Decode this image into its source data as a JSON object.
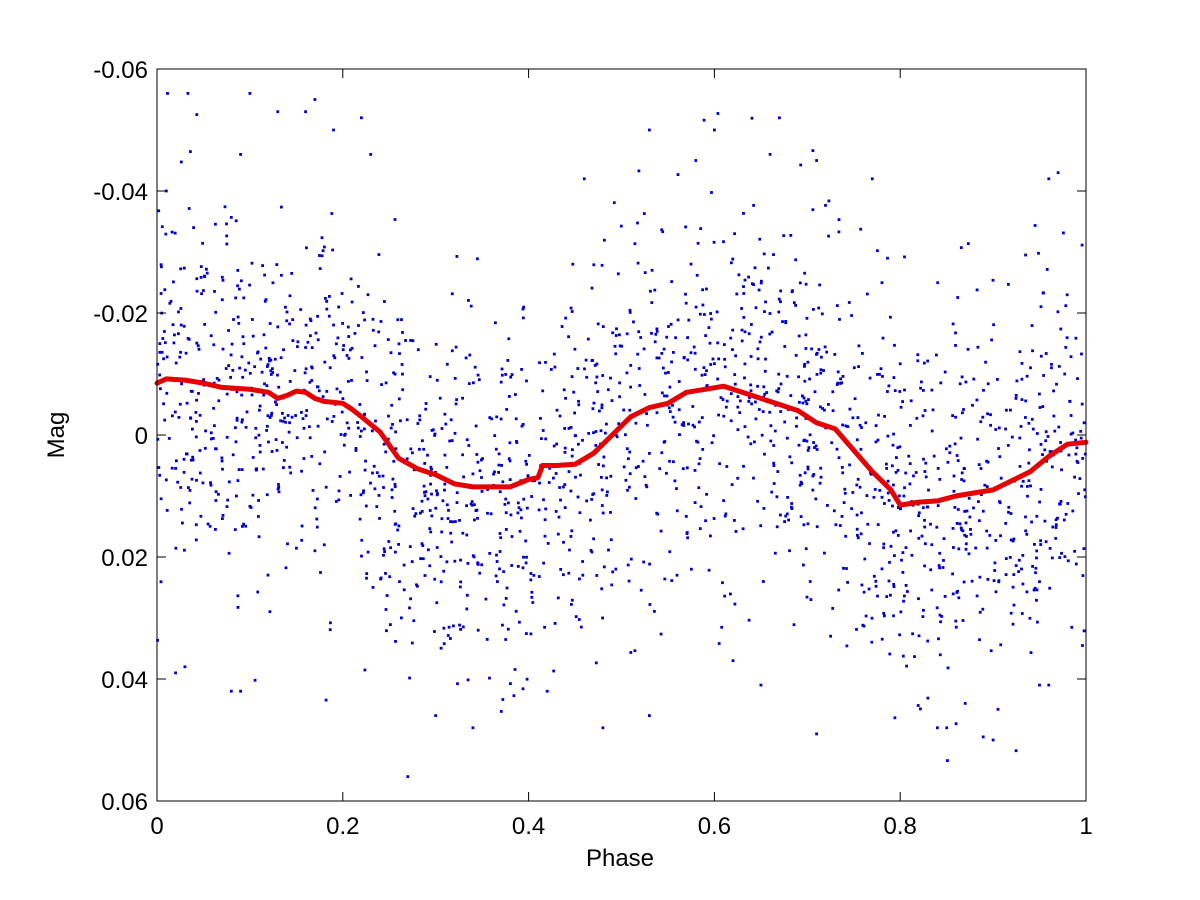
{
  "chart_data": {
    "type": "scatter",
    "title": "",
    "xlabel": "Phase",
    "ylabel": "Mag",
    "xlim": [
      0,
      1
    ],
    "ylim": [
      0.06,
      -0.06
    ],
    "y_inverted": true,
    "grid": false,
    "legend": "none",
    "xticks": [
      0,
      0.2,
      0.4,
      0.6,
      0.8,
      1
    ],
    "xtick_labels": [
      "0",
      "0.2",
      "0.4",
      "0.6",
      "0.8",
      "1"
    ],
    "yticks": [
      -0.06,
      -0.04,
      -0.02,
      0,
      0.02,
      0.04,
      0.06
    ],
    "ytick_labels": [
      "-0.06",
      "-0.04",
      "-0.02",
      "0",
      "0.02",
      "0.04",
      "0.06"
    ],
    "colors": {
      "points": "#0000cc",
      "fit": "#e60000"
    },
    "series": [
      {
        "type": "scatter",
        "values_note": "phase-folded photometry, about 2000 individual measurements scattered roughly ±0.04 mag around the fitted curve",
        "sample_points": [
          [
            0.01,
            -0.04
          ],
          [
            0.02,
            0.039
          ],
          [
            0.03,
            0.038
          ],
          [
            0.08,
            0.042
          ],
          [
            0.09,
            0.042
          ],
          [
            0.09,
            -0.046
          ],
          [
            0.1,
            -0.056
          ],
          [
            0.13,
            -0.053
          ],
          [
            0.16,
            -0.053
          ],
          [
            0.17,
            -0.055
          ],
          [
            0.19,
            -0.05
          ],
          [
            0.22,
            -0.052
          ],
          [
            0.23,
            -0.046
          ],
          [
            0.27,
            0.056
          ],
          [
            0.3,
            0.046
          ],
          [
            0.34,
            0.048
          ],
          [
            0.42,
            0.042
          ],
          [
            0.46,
            -0.042
          ],
          [
            0.48,
            0.048
          ],
          [
            0.53,
            0.046
          ],
          [
            0.53,
            -0.05
          ],
          [
            0.58,
            -0.045
          ],
          [
            0.6,
            -0.05
          ],
          [
            0.62,
            0.037
          ],
          [
            0.65,
            0.041
          ],
          [
            0.66,
            -0.046
          ],
          [
            0.67,
            -0.052
          ],
          [
            0.71,
            0.049
          ],
          [
            0.71,
            -0.045
          ],
          [
            0.77,
            -0.042
          ],
          [
            0.84,
            0.048
          ],
          [
            0.85,
            0.048
          ],
          [
            0.87,
            0.044
          ],
          [
            0.9,
            0.05
          ],
          [
            0.96,
            -0.042
          ],
          [
            0.97,
            -0.043
          ],
          [
            0.95,
            0.041
          ],
          [
            0.96,
            0.041
          ]
        ]
      },
      {
        "type": "line",
        "x": [
          0.0,
          0.01,
          0.03,
          0.05,
          0.07,
          0.1,
          0.12,
          0.13,
          0.14,
          0.15,
          0.16,
          0.17,
          0.18,
          0.2,
          0.21,
          0.22,
          0.24,
          0.26,
          0.28,
          0.3,
          0.32,
          0.34,
          0.36,
          0.38,
          0.4,
          0.41,
          0.415,
          0.43,
          0.45,
          0.47,
          0.49,
          0.51,
          0.53,
          0.55,
          0.57,
          0.59,
          0.61,
          0.63,
          0.65,
          0.67,
          0.69,
          0.71,
          0.73,
          0.75,
          0.77,
          0.79,
          0.8,
          0.82,
          0.84,
          0.86,
          0.88,
          0.9,
          0.92,
          0.94,
          0.96,
          0.98,
          1.0
        ],
        "y": [
          -0.0085,
          -0.0092,
          -0.009,
          -0.0085,
          -0.0078,
          -0.0075,
          -0.007,
          -0.006,
          -0.0065,
          -0.0072,
          -0.007,
          -0.006,
          -0.0055,
          -0.0052,
          -0.0042,
          -0.003,
          -0.0005,
          0.0038,
          0.0055,
          0.0065,
          0.008,
          0.0085,
          0.0085,
          0.0085,
          0.0073,
          0.007,
          0.005,
          0.005,
          0.0048,
          0.003,
          0.0,
          -0.003,
          -0.0045,
          -0.0052,
          -0.007,
          -0.0075,
          -0.008,
          -0.007,
          -0.006,
          -0.005,
          -0.004,
          -0.002,
          -0.001,
          0.0025,
          0.006,
          0.009,
          0.0115,
          0.011,
          0.0108,
          0.01,
          0.0095,
          0.009,
          0.0075,
          0.006,
          0.0035,
          0.0015,
          0.0012
        ]
      }
    ]
  }
}
